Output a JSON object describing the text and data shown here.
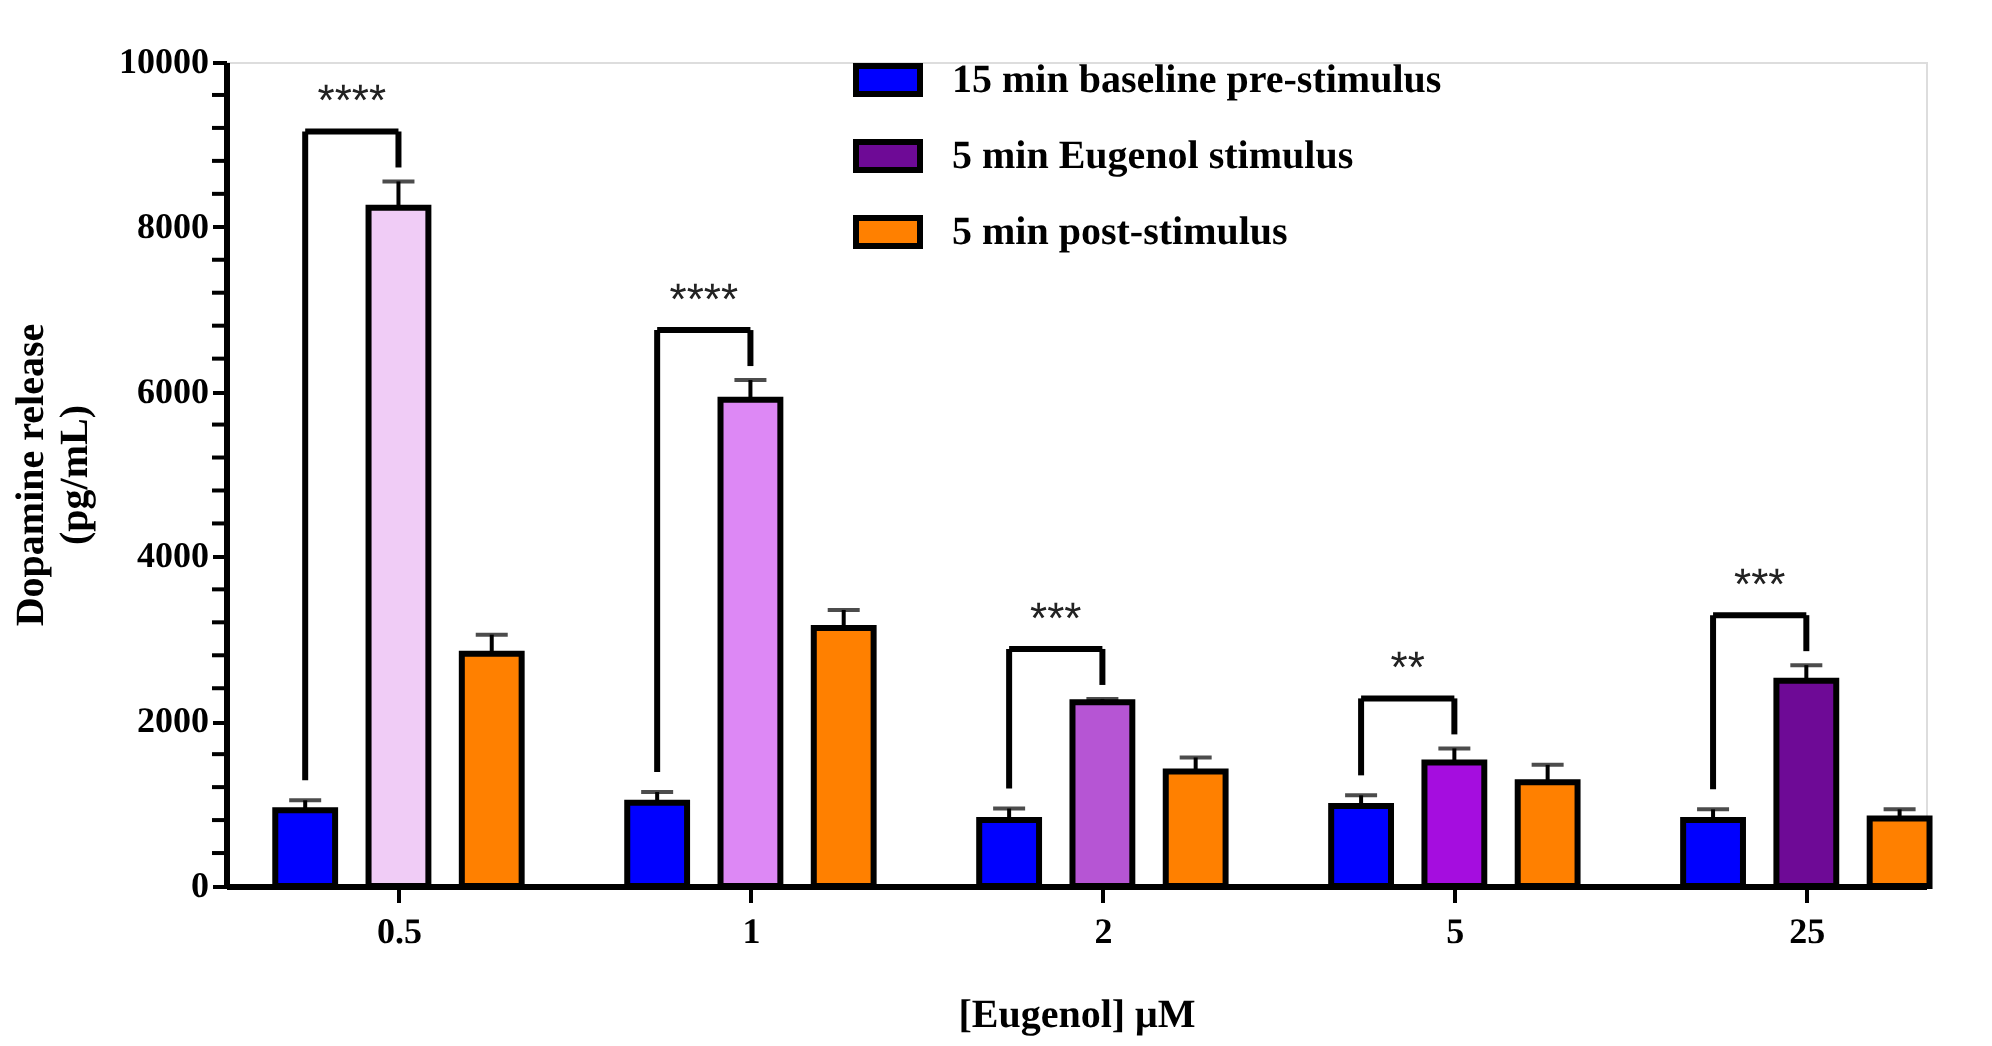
{
  "chart_data": {
    "type": "bar",
    "xlabel": "[Eugenol] μM",
    "ylabel": "Dopamine release\n(pg/mL)",
    "categories": [
      "0.5",
      "1",
      "2",
      "5",
      "25"
    ],
    "series": [
      {
        "name": "15 min baseline pre-stimulus",
        "color": "#0000ff",
        "values": [
          920,
          1010,
          800,
          970,
          800
        ],
        "errors": [
          120,
          130,
          140,
          130,
          130
        ]
      },
      {
        "name": "5 min Eugenol stimulus",
        "color": "#6e0a96",
        "colors": [
          "#f0ccf6",
          "#dd88f5",
          "#b655d4",
          "#a50ddf",
          "#6e0a96"
        ],
        "values": [
          8230,
          5900,
          2230,
          1500,
          2490
        ],
        "errors": [
          320,
          240,
          40,
          170,
          190
        ]
      },
      {
        "name": "5 min post-stimulus",
        "color": "#ff8000",
        "values": [
          2820,
          3130,
          1390,
          1260,
          820
        ],
        "errors": [
          230,
          220,
          170,
          210,
          110
        ]
      }
    ],
    "ylim": [
      0,
      10000
    ],
    "yticks": [
      0,
      {
        "value": 400,
        "label": null
      },
      {
        "value": 800,
        "label": null
      },
      {
        "value": 1200,
        "label": null
      },
      {
        "value": 1600,
        "label": null
      },
      2000,
      {
        "value": 2400,
        "label": null
      },
      {
        "value": 2800,
        "label": null
      },
      {
        "value": 3200,
        "label": null
      },
      {
        "value": 3600,
        "label": null
      },
      4000,
      {
        "value": 4400,
        "label": null
      },
      {
        "value": 4800,
        "label": null
      },
      {
        "value": 5200,
        "label": null
      },
      {
        "value": 5600,
        "label": null
      },
      6000,
      {
        "value": 6400,
        "label": null
      },
      {
        "value": 6800,
        "label": null
      },
      {
        "value": 7200,
        "label": null
      },
      {
        "value": 7600,
        "label": null
      },
      8000,
      {
        "value": 8400,
        "label": null
      },
      {
        "value": 8800,
        "label": null
      },
      {
        "value": 9200,
        "label": null
      },
      {
        "value": 9600,
        "label": null
      },
      10000
    ],
    "annotations": [
      "****",
      "****",
      "***",
      "**",
      "***"
    ],
    "legend": "top right",
    "grid": false
  }
}
